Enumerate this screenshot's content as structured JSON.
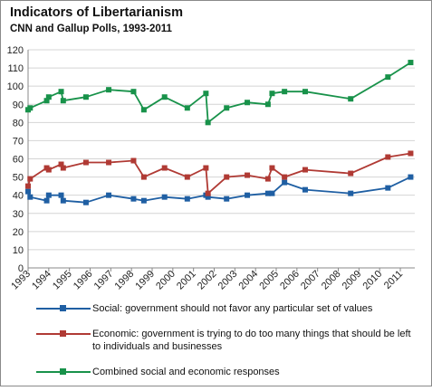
{
  "chart_data": {
    "type": "line",
    "title": "Indicators of Libertarianism",
    "subtitle": "CNN and Gallup Polls, 1993-2011",
    "xlabel": "",
    "ylabel": "",
    "ylim": [
      0,
      120
    ],
    "xlim": [
      1993,
      2011.7
    ],
    "yticks": [
      0,
      10,
      20,
      30,
      40,
      50,
      60,
      70,
      80,
      90,
      100,
      110,
      120
    ],
    "xticks": [
      "1993",
      "1994",
      "1995",
      "1996",
      "1997",
      "1998",
      "1999",
      "2000",
      "2001",
      "2002",
      "2003",
      "2004",
      "2005",
      "2006",
      "2007",
      "2008",
      "2009",
      "2010",
      "2011"
    ],
    "grid": true,
    "legend_position": "bottom",
    "series": [
      {
        "name": "Social: government should not favor any particular set of values",
        "color": "#1f5fa3",
        "points": [
          [
            1993.0,
            42
          ],
          [
            1993.1,
            39
          ],
          [
            1993.9,
            37
          ],
          [
            1994.0,
            40
          ],
          [
            1994.6,
            40
          ],
          [
            1994.7,
            37
          ],
          [
            1995.8,
            36
          ],
          [
            1996.9,
            40
          ],
          [
            1998.1,
            38
          ],
          [
            1998.6,
            37
          ],
          [
            1999.6,
            39
          ],
          [
            2000.7,
            38
          ],
          [
            2001.6,
            40
          ],
          [
            2001.7,
            39
          ],
          [
            2002.6,
            38
          ],
          [
            2003.6,
            40
          ],
          [
            2004.6,
            41
          ],
          [
            2004.8,
            41
          ],
          [
            2005.4,
            47
          ],
          [
            2006.4,
            43
          ],
          [
            2008.6,
            41
          ],
          [
            2010.4,
            44
          ],
          [
            2011.5,
            50
          ]
        ]
      },
      {
        "name": "Economic: government is trying to do too many things that should be left to individuals and businesses",
        "color": "#b03a34",
        "points": [
          [
            1993.0,
            45
          ],
          [
            1993.1,
            49
          ],
          [
            1993.9,
            55
          ],
          [
            1994.0,
            54
          ],
          [
            1994.6,
            57
          ],
          [
            1994.7,
            55
          ],
          [
            1995.8,
            58
          ],
          [
            1996.9,
            58
          ],
          [
            1998.1,
            59
          ],
          [
            1998.6,
            50
          ],
          [
            1999.6,
            55
          ],
          [
            2000.7,
            50
          ],
          [
            2001.6,
            55
          ],
          [
            2001.7,
            41
          ],
          [
            2002.6,
            50
          ],
          [
            2003.6,
            51
          ],
          [
            2004.6,
            49
          ],
          [
            2004.8,
            55
          ],
          [
            2005.4,
            50
          ],
          [
            2006.4,
            54
          ],
          [
            2008.6,
            52
          ],
          [
            2010.4,
            61
          ],
          [
            2011.5,
            63
          ]
        ]
      },
      {
        "name": "Combined social and economic responses",
        "color": "#18924a",
        "points": [
          [
            1993.0,
            87
          ],
          [
            1993.1,
            88
          ],
          [
            1993.9,
            92
          ],
          [
            1994.0,
            94
          ],
          [
            1994.6,
            97
          ],
          [
            1994.7,
            92
          ],
          [
            1995.8,
            94
          ],
          [
            1996.9,
            98
          ],
          [
            1998.1,
            97
          ],
          [
            1998.6,
            87
          ],
          [
            1999.6,
            94
          ],
          [
            2000.7,
            88
          ],
          [
            2001.6,
            96
          ],
          [
            2001.7,
            80
          ],
          [
            2002.6,
            88
          ],
          [
            2003.6,
            91
          ],
          [
            2004.6,
            90
          ],
          [
            2004.8,
            96
          ],
          [
            2005.4,
            97
          ],
          [
            2006.4,
            97
          ],
          [
            2008.6,
            93
          ],
          [
            2010.4,
            105
          ],
          [
            2011.5,
            113
          ]
        ]
      }
    ]
  }
}
